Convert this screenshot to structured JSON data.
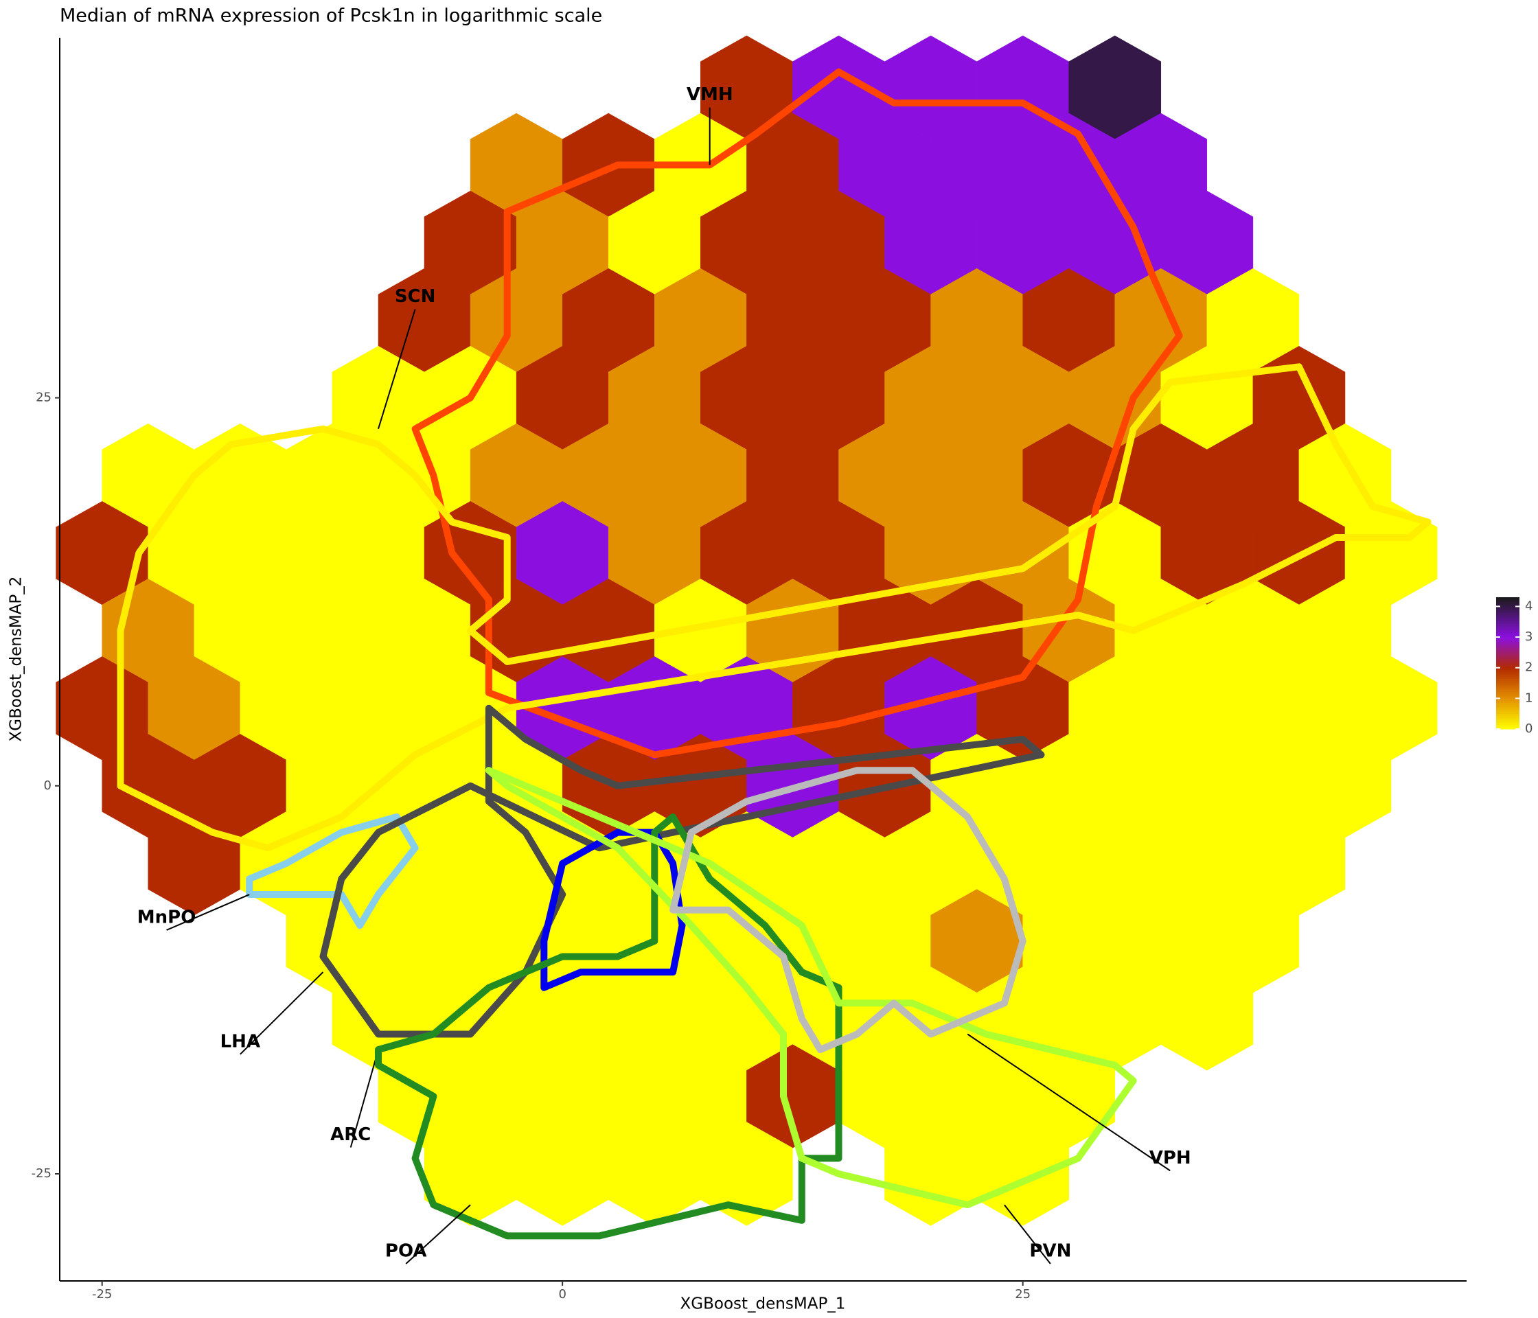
{
  "chart_data": {
    "type": "hexbin",
    "title": "Median of mRNA expression of Pcsk1n in logarithmic scale",
    "x_label": "XGBoost_densMAP_1",
    "y_label": "XGBoost_densMAP_2",
    "xlim": [
      -27.3,
      49.1
    ],
    "ylim": [
      -31.9,
      48.2
    ],
    "xticks": [
      -25,
      0,
      25
    ],
    "yticks": [
      -25,
      0,
      25
    ],
    "hex_size": [
      5,
      5
    ],
    "color_stops": [
      {
        "value": 0,
        "color": "#ffff00"
      },
      {
        "value": 1,
        "color": "#e39000"
      },
      {
        "value": 2,
        "color": "#b32a00"
      },
      {
        "value": 3,
        "color": "#8b10e0"
      },
      {
        "value": 4.3,
        "color": "#1a1a1a"
      }
    ],
    "colorbar_lim": [
      0,
      4.3
    ],
    "colorbar_ticks": [
      0,
      1,
      2,
      3,
      4
    ],
    "hex_rows": [
      {
        "y": 45,
        "x": [
          10,
          15,
          20,
          25,
          30
        ],
        "values": [
          2,
          3,
          3,
          3,
          4
        ]
      },
      {
        "y": 40,
        "x": [
          -2.5,
          2.5,
          7.5,
          12.5,
          17.5,
          22.5,
          27.5,
          32.5
        ],
        "values": [
          1,
          2,
          0,
          2,
          3,
          3,
          3,
          3
        ]
      },
      {
        "y": 35,
        "x": [
          -5,
          0,
          5,
          10,
          15,
          20,
          25,
          30,
          35
        ],
        "values": [
          2,
          1,
          0,
          2,
          2,
          3,
          3,
          3,
          3
        ]
      },
      {
        "y": 30,
        "x": [
          -7.5,
          -2.5,
          2.5,
          7.5,
          12.5,
          17.5,
          22.5,
          27.5,
          32.5,
          37.5
        ],
        "values": [
          2,
          1,
          2,
          1,
          2,
          2,
          1,
          2,
          1,
          0
        ]
      },
      {
        "y": 25,
        "x": [
          -10,
          -5,
          0,
          5,
          10,
          15,
          20,
          25,
          30,
          35,
          40
        ],
        "values": [
          0,
          0,
          2,
          1,
          2,
          2,
          1,
          1,
          1,
          0,
          2
        ]
      },
      {
        "y": 20,
        "x": [
          -22.5,
          -17.5,
          -12.5,
          -7.5,
          -2.5,
          2.5,
          7.5,
          12.5,
          17.5,
          22.5,
          27.5,
          32.5,
          37.5,
          42.5
        ],
        "values": [
          0,
          0,
          0,
          0,
          1,
          1,
          1,
          2,
          1,
          1,
          2,
          2,
          2,
          0
        ]
      },
      {
        "y": 15,
        "x": [
          -25,
          -20,
          -15,
          -10,
          -5,
          0,
          5,
          10,
          15,
          20,
          25,
          30,
          35,
          40,
          45
        ],
        "values": [
          2,
          0,
          0,
          0,
          2,
          3,
          1,
          2,
          2,
          1,
          1,
          0,
          2,
          2,
          0
        ]
      },
      {
        "y": 10,
        "x": [
          -22.5,
          -17.5,
          -12.5,
          -7.5,
          -2.5,
          2.5,
          7.5,
          12.5,
          17.5,
          22.5,
          27.5,
          32.5,
          37.5,
          42.5
        ],
        "values": [
          1,
          0,
          0,
          0,
          2,
          2,
          0,
          1,
          2,
          2,
          1,
          0,
          0,
          0
        ]
      },
      {
        "y": 5,
        "x": [
          -25,
          -20,
          -15,
          -10,
          -5,
          0,
          5,
          10,
          15,
          20,
          25,
          30,
          35,
          40,
          45
        ],
        "values": [
          2,
          1,
          0,
          0,
          0,
          3,
          3,
          3,
          2,
          3,
          2,
          0,
          0,
          0,
          0
        ]
      },
      {
        "y": 0,
        "x": [
          -22.5,
          -17.5,
          -12.5,
          -7.5,
          -2.5,
          2.5,
          7.5,
          12.5,
          17.5,
          22.5,
          27.5,
          32.5,
          37.5,
          42.5
        ],
        "values": [
          2,
          2,
          0,
          0,
          0,
          2,
          2,
          3,
          2,
          0,
          0,
          0,
          0,
          0
        ]
      },
      {
        "y": -5,
        "x": [
          -20,
          -15,
          -10,
          -5,
          0,
          5,
          10,
          15,
          20,
          25,
          30,
          35,
          40
        ],
        "values": [
          2,
          0,
          0,
          0,
          0,
          0,
          0,
          0,
          0,
          0,
          0,
          0,
          0
        ]
      },
      {
        "y": -10,
        "x": [
          -12.5,
          -7.5,
          -2.5,
          2.5,
          7.5,
          12.5,
          17.5,
          22.5,
          27.5,
          32.5,
          37.5
        ],
        "values": [
          0,
          0,
          0,
          0,
          0,
          0,
          0,
          1,
          0,
          0,
          0
        ]
      },
      {
        "y": -15,
        "x": [
          -10,
          -5,
          0,
          5,
          10,
          15,
          20,
          25,
          30,
          35
        ],
        "values": [
          0,
          0,
          0,
          0,
          0,
          0,
          0,
          0,
          0,
          0
        ]
      },
      {
        "y": -20,
        "x": [
          -7.5,
          -2.5,
          2.5,
          7.5,
          12.5,
          17.5,
          22.5,
          27.5
        ],
        "values": [
          0,
          0,
          0,
          0,
          2,
          0,
          0,
          0
        ]
      },
      {
        "y": -25,
        "x": [
          -5,
          0,
          5,
          10,
          20,
          25
        ],
        "values": [
          0,
          0,
          0,
          0,
          0,
          0
        ]
      }
    ],
    "regions": [
      {
        "name": "VMH",
        "color": "#ff4500",
        "outline": [
          [
            -3,
            37
          ],
          [
            3,
            40
          ],
          [
            8,
            40
          ],
          [
            10.5,
            42
          ],
          [
            15,
            46
          ],
          [
            18,
            44
          ],
          [
            25,
            44
          ],
          [
            28,
            42
          ],
          [
            31,
            36
          ],
          [
            32,
            33
          ],
          [
            33.5,
            29
          ],
          [
            31,
            25
          ],
          [
            29,
            18
          ],
          [
            28,
            12
          ],
          [
            25,
            7
          ],
          [
            15,
            4
          ],
          [
            5,
            2
          ],
          [
            -4,
            6
          ],
          [
            -4,
            9
          ],
          [
            -4,
            12
          ],
          [
            -6,
            15
          ],
          [
            -7,
            20
          ],
          [
            -8,
            23
          ],
          [
            -5,
            25
          ],
          [
            -3,
            29
          ],
          [
            -3,
            33
          ]
        ]
      },
      {
        "name": "SCN",
        "color": "#ffee00",
        "outline": [
          [
            -24,
            5
          ],
          [
            -24,
            10
          ],
          [
            -23,
            15
          ],
          [
            -20,
            20
          ],
          [
            -18,
            22
          ],
          [
            -13,
            23
          ],
          [
            -10,
            22
          ],
          [
            -8,
            20
          ],
          [
            -6,
            17
          ],
          [
            -3,
            16
          ],
          [
            -3,
            12
          ],
          [
            -5,
            10
          ],
          [
            -3,
            8
          ],
          [
            25,
            14
          ],
          [
            30,
            18
          ],
          [
            31,
            23
          ],
          [
            33,
            26
          ],
          [
            40,
            27
          ],
          [
            42,
            22
          ],
          [
            44,
            18
          ],
          [
            47,
            17
          ],
          [
            46,
            16
          ],
          [
            42,
            16
          ],
          [
            37,
            13
          ],
          [
            31,
            10
          ],
          [
            28,
            11
          ],
          [
            -3,
            5
          ],
          [
            -8,
            2
          ],
          [
            -12,
            -2
          ],
          [
            -16,
            -4
          ],
          [
            -19,
            -3
          ],
          [
            -24,
            0
          ]
        ]
      },
      {
        "name": "MnPO",
        "color": "#87ceeb",
        "outline": [
          [
            -17,
            -6
          ],
          [
            -15,
            -5
          ],
          [
            -12,
            -3
          ],
          [
            -9,
            -2
          ],
          [
            -8,
            -4
          ],
          [
            -10,
            -7
          ],
          [
            -11,
            -9
          ],
          [
            -12,
            -7
          ],
          [
            -14,
            -7
          ],
          [
            -17,
            -7
          ]
        ]
      },
      {
        "name": "LHA",
        "color": "#4a4a4a",
        "outline": [
          [
            -13,
            -11
          ],
          [
            -10,
            -16
          ],
          [
            -5,
            -16
          ],
          [
            -2,
            -12
          ],
          [
            0,
            -7
          ],
          [
            -2,
            -3
          ],
          [
            -4,
            -1
          ],
          [
            -4,
            5
          ],
          [
            -2,
            3
          ],
          [
            1,
            1
          ],
          [
            3,
            0
          ],
          [
            25,
            3
          ],
          [
            26,
            2
          ],
          [
            10,
            -2
          ],
          [
            2,
            -4
          ],
          [
            -5,
            0
          ],
          [
            -10,
            -3
          ],
          [
            -12,
            -6
          ]
        ]
      },
      {
        "name": "ARC",
        "color": "#0000ee",
        "outline": [
          [
            -1,
            -13
          ],
          [
            -1,
            -10
          ],
          [
            0,
            -5
          ],
          [
            3,
            -3
          ],
          [
            5,
            -3
          ],
          [
            6,
            -5
          ],
          [
            6.5,
            -9
          ],
          [
            6,
            -12
          ],
          [
            4,
            -12
          ],
          [
            3,
            -12
          ],
          [
            1,
            -12
          ]
        ]
      },
      {
        "name": "POA",
        "color": "#228b22",
        "outline": [
          [
            -10,
            -17
          ],
          [
            -7,
            -16
          ],
          [
            -4,
            -13
          ],
          [
            0,
            -11
          ],
          [
            3,
            -11
          ],
          [
            5,
            -10
          ],
          [
            5,
            -3
          ],
          [
            6,
            -2
          ],
          [
            8,
            -6
          ],
          [
            11,
            -9
          ],
          [
            13,
            -12
          ],
          [
            15,
            -13
          ],
          [
            15,
            -24
          ],
          [
            13,
            -24
          ],
          [
            13,
            -28
          ],
          [
            9,
            -27
          ],
          [
            2,
            -29
          ],
          [
            -3,
            -29
          ],
          [
            -7,
            -27
          ],
          [
            -8,
            -24
          ],
          [
            -7,
            -20
          ],
          [
            -10,
            -18
          ]
        ]
      },
      {
        "name": "PVN",
        "color": "#adff2f",
        "outline": [
          [
            -4,
            1
          ],
          [
            0,
            -1
          ],
          [
            8,
            -5
          ],
          [
            13,
            -9
          ],
          [
            15,
            -14
          ],
          [
            19,
            -14
          ],
          [
            23,
            -16
          ],
          [
            30,
            -18
          ],
          [
            31,
            -19
          ],
          [
            28,
            -24
          ],
          [
            22,
            -27
          ],
          [
            15,
            -25
          ],
          [
            13,
            -24
          ],
          [
            12,
            -20
          ],
          [
            12,
            -16
          ],
          [
            10,
            -13
          ],
          [
            7,
            -9
          ],
          [
            3,
            -4
          ],
          [
            -3,
            0
          ]
        ]
      },
      {
        "name": "VPH",
        "color": "#bbbbbb",
        "outline": [
          [
            6,
            -8
          ],
          [
            7,
            -3
          ],
          [
            10,
            -1
          ],
          [
            13,
            0
          ],
          [
            16,
            1
          ],
          [
            19,
            1
          ],
          [
            22,
            -2
          ],
          [
            24,
            -6
          ],
          [
            25,
            -10
          ],
          [
            24,
            -14
          ],
          [
            20,
            -16
          ],
          [
            18,
            -14
          ],
          [
            16,
            -16
          ],
          [
            14,
            -17
          ],
          [
            13,
            -15
          ],
          [
            12,
            -11
          ],
          [
            9,
            -8
          ]
        ]
      }
    ]
  }
}
